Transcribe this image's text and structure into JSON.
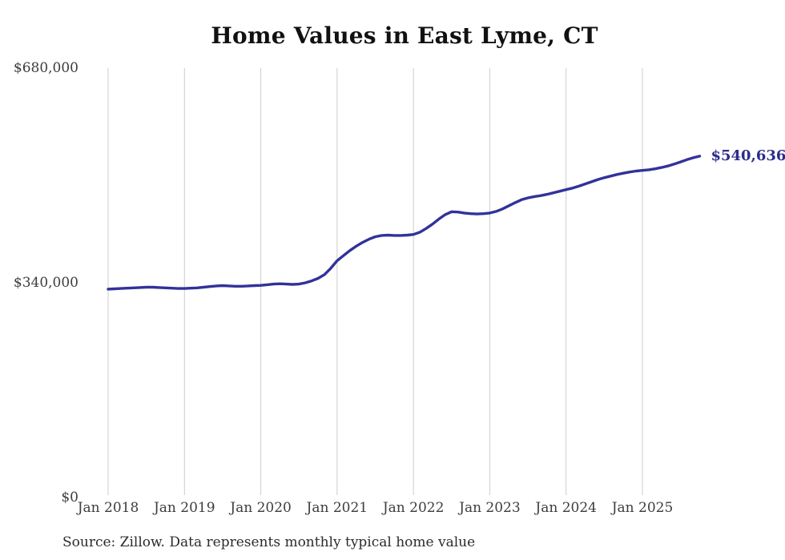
{
  "chart_data": {
    "type": "line",
    "title": "Home Values in East Lyme, CT",
    "source_note": "Source: Zillow. Data represents monthly typical home value",
    "end_label": "$540,636",
    "last_value": 540636,
    "x_ticks": [
      "Jan 2018",
      "Jan 2019",
      "Jan 2020",
      "Jan 2021",
      "Jan 2022",
      "Jan 2023",
      "Jan 2024",
      "Jan 2025"
    ],
    "y_ticks": [
      {
        "label": "$0",
        "value": 0
      },
      {
        "label": "$340,000",
        "value": 340000
      },
      {
        "label": "$680,000",
        "value": 680000
      }
    ],
    "ylim": [
      0,
      680000
    ],
    "grid": "vertical-only",
    "legend": "none",
    "colors": {
      "line": "#32329b",
      "end_label": "#2c2c8c",
      "grid": "#cccccc",
      "axis_text": "#3d3d3d",
      "title_text": "#111111",
      "source_text": "#2b2b2b"
    },
    "series": [
      {
        "name": "Monthly typical home value",
        "start": "Jan 2018",
        "end": "Oct 2025",
        "frequency": "monthly",
        "values": [
          330000,
          330500,
          331000,
          331500,
          332000,
          332500,
          333000,
          333000,
          332500,
          332000,
          331500,
          331000,
          331000,
          331500,
          332000,
          333000,
          334000,
          335000,
          335500,
          335000,
          334500,
          334500,
          335000,
          335500,
          336000,
          337000,
          338000,
          338500,
          338000,
          337500,
          338000,
          340000,
          343000,
          347000,
          353000,
          363000,
          375000,
          383000,
          391000,
          398000,
          404000,
          409000,
          413000,
          415000,
          415500,
          415000,
          415000,
          415500,
          416500,
          420000,
          426000,
          433000,
          441000,
          448000,
          452500,
          452000,
          450500,
          449500,
          449000,
          449500,
          450500,
          453000,
          457000,
          462000,
          467000,
          471500,
          474500,
          476500,
          478000,
          480000,
          482500,
          485000,
          487500,
          490000,
          493000,
          496500,
          500000,
          503500,
          506500,
          509000,
          511500,
          513500,
          515500,
          517000,
          518000,
          519000,
          520500,
          522500,
          525000,
          528000,
          531500,
          535000,
          538000,
          540636
        ]
      }
    ]
  }
}
